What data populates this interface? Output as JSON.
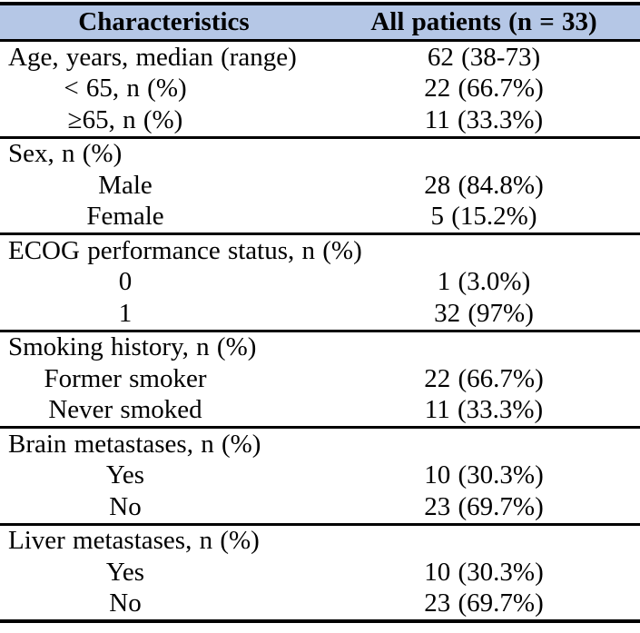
{
  "colors": {
    "header_bg": "#b5c7e6",
    "border": "#000000",
    "text": "#000000"
  },
  "table": {
    "header": {
      "characteristics": "Characteristics",
      "all_patients": "All patients (n = 33)"
    },
    "sections": [
      {
        "rows": [
          {
            "label": "Age, years, median (range)",
            "value": "62 (38-73)",
            "indent": false
          },
          {
            "label": "< 65, n (%)",
            "value": "22 (66.7%)",
            "indent": true
          },
          {
            "label": "≥65, n (%)",
            "value": "11 (33.3%)",
            "indent": true
          }
        ]
      },
      {
        "rows": [
          {
            "label": "Sex, n (%)",
            "value": "",
            "indent": false
          },
          {
            "label": "Male",
            "value": "28 (84.8%)",
            "indent": true
          },
          {
            "label": "Female",
            "value": "5 (15.2%)",
            "indent": true
          }
        ]
      },
      {
        "rows": [
          {
            "label": "ECOG performance status, n (%)",
            "value": "",
            "indent": false
          },
          {
            "label": "0",
            "value": "1 (3.0%)",
            "indent": true
          },
          {
            "label": "1",
            "value": "32 (97%)",
            "indent": true
          }
        ]
      },
      {
        "rows": [
          {
            "label": "Smoking history, n (%)",
            "value": "",
            "indent": false
          },
          {
            "label": "Former smoker",
            "value": "22 (66.7%)",
            "indent": true
          },
          {
            "label": "Never smoked",
            "value": "11 (33.3%)",
            "indent": true
          }
        ]
      },
      {
        "rows": [
          {
            "label": "Brain metastases, n (%)",
            "value": "",
            "indent": false
          },
          {
            "label": "Yes",
            "value": "10 (30.3%)",
            "indent": true
          },
          {
            "label": "No",
            "value": "23 (69.7%)",
            "indent": true
          }
        ]
      },
      {
        "rows": [
          {
            "label": "Liver metastases, n (%)",
            "value": "",
            "indent": false
          },
          {
            "label": "Yes",
            "value": "10 (30.3%)",
            "indent": true
          },
          {
            "label": "No",
            "value": "23 (69.7%)",
            "indent": true
          }
        ]
      }
    ]
  }
}
